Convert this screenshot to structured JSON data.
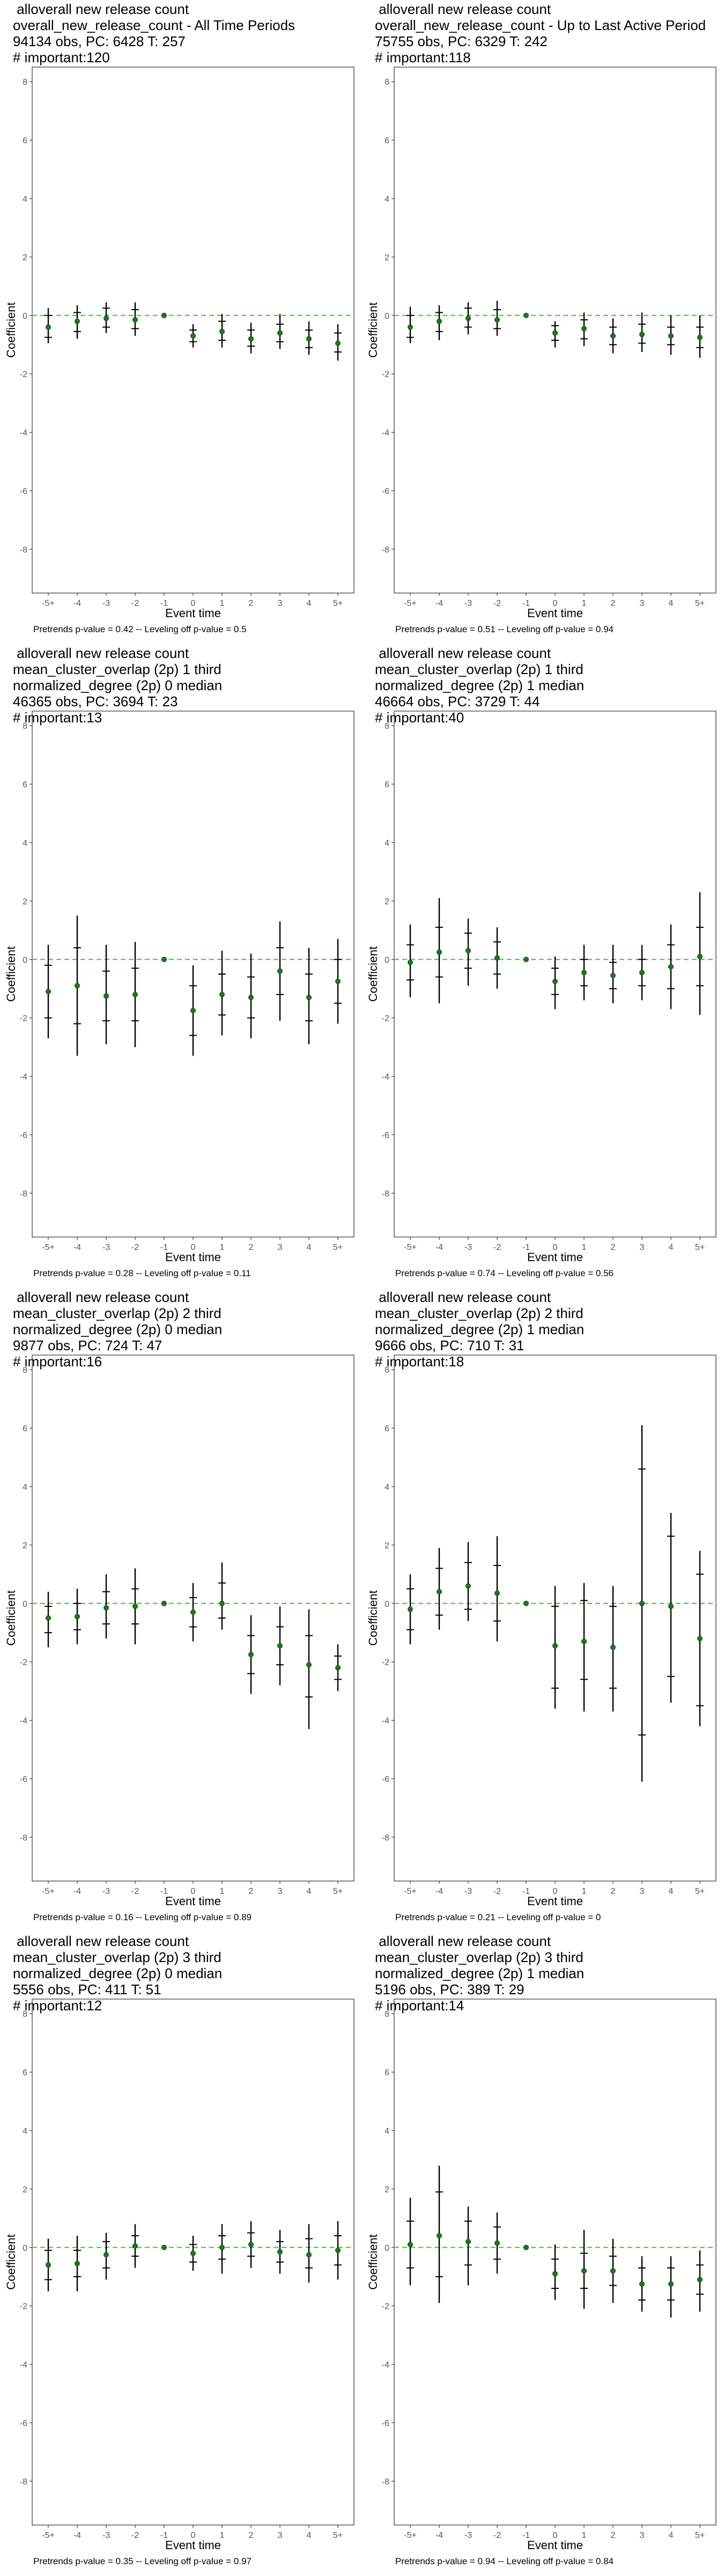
{
  "chart_data": [
    {
      "type": "scatter",
      "title_lines": [
        " alloverall new release count",
        "overall_new_release_count - All Time Periods",
        "94134 obs, PC: 6428 T: 257",
        "# important:120"
      ],
      "footer": "Pretrends p-value = 0.42 -- Leveling off p-value = 0.5",
      "xlabel": "Event time",
      "ylabel": "Coefficient",
      "categories": [
        "-5+",
        "-4",
        "-3",
        "-2",
        "-1",
        "0",
        "1",
        "2",
        "3",
        "4",
        "5+"
      ],
      "y_ticks": [
        "8",
        "6",
        "4",
        "2",
        "0",
        "-2",
        "-4",
        "-6",
        "-8"
      ],
      "ylim": [
        -9.5,
        8.5
      ],
      "values": [
        -0.4,
        -0.2,
        -0.1,
        -0.15,
        0,
        -0.7,
        -0.55,
        -0.8,
        -0.6,
        -0.8,
        -0.95
      ],
      "ci_outer": [
        [
          -0.95,
          0.25
        ],
        [
          -0.8,
          0.35
        ],
        [
          -0.6,
          0.45
        ],
        [
          -0.7,
          0.45
        ],
        [
          0,
          0
        ],
        [
          -1.1,
          -0.3
        ],
        [
          -1.1,
          0.05
        ],
        [
          -1.3,
          -0.25
        ],
        [
          -1.15,
          0.05
        ],
        [
          -1.35,
          -0.2
        ],
        [
          -1.55,
          -0.3
        ]
      ],
      "ci_inner": [
        [
          -0.75,
          0.0
        ],
        [
          -0.55,
          0.1
        ],
        [
          -0.4,
          0.25
        ],
        [
          -0.45,
          0.2
        ],
        [
          0,
          0
        ],
        [
          -0.9,
          -0.5
        ],
        [
          -0.85,
          -0.2
        ],
        [
          -1.05,
          -0.5
        ],
        [
          -0.9,
          -0.3
        ],
        [
          -1.1,
          -0.5
        ],
        [
          -1.25,
          -0.6
        ]
      ]
    },
    {
      "type": "scatter",
      "title_lines": [
        " alloverall new release count",
        "overall_new_release_count - Up to Last Active Period",
        "75755 obs, PC: 6329 T: 242",
        "# important:118"
      ],
      "footer": "Pretrends p-value = 0.51 -- Leveling off p-value = 0.94",
      "xlabel": "Event time",
      "ylabel": "Coefficient",
      "categories": [
        "-5+",
        "-4",
        "-3",
        "-2",
        "-1",
        "0",
        "1",
        "2",
        "3",
        "4",
        "5+"
      ],
      "y_ticks": [
        "8",
        "6",
        "4",
        "2",
        "0",
        "-2",
        "-4",
        "-6",
        "-8"
      ],
      "ylim": [
        -9.5,
        8.5
      ],
      "values": [
        -0.4,
        -0.2,
        -0.1,
        -0.15,
        0,
        -0.6,
        -0.45,
        -0.7,
        -0.65,
        -0.7,
        -0.75
      ],
      "ci_outer": [
        [
          -0.95,
          0.3
        ],
        [
          -0.85,
          0.35
        ],
        [
          -0.65,
          0.45
        ],
        [
          -0.7,
          0.5
        ],
        [
          0,
          0
        ],
        [
          -1.1,
          -0.2
        ],
        [
          -1.05,
          0.1
        ],
        [
          -1.3,
          -0.1
        ],
        [
          -1.25,
          0.1
        ],
        [
          -1.35,
          0.0
        ],
        [
          -1.45,
          0.0
        ]
      ],
      "ci_inner": [
        [
          -0.75,
          0.0
        ],
        [
          -0.55,
          0.1
        ],
        [
          -0.4,
          0.25
        ],
        [
          -0.45,
          0.2
        ],
        [
          0,
          0
        ],
        [
          -0.85,
          -0.35
        ],
        [
          -0.8,
          -0.15
        ],
        [
          -1.0,
          -0.4
        ],
        [
          -0.95,
          -0.3
        ],
        [
          -1.0,
          -0.4
        ],
        [
          -1.1,
          -0.4
        ]
      ]
    },
    {
      "type": "scatter",
      "title_lines": [
        " alloverall new release count",
        "mean_cluster_overlap (2p) 1 third",
        "normalized_degree (2p) 0 median",
        "46365 obs, PC: 3694 T: 23",
        "# important:13"
      ],
      "footer": "Pretrends p-value = 0.28 -- Leveling off p-value = 0.11",
      "xlabel": "Event time",
      "ylabel": "Coefficient",
      "categories": [
        "-5+",
        "-4",
        "-3",
        "-2",
        "-1",
        "0",
        "1",
        "2",
        "3",
        "4",
        "5+"
      ],
      "y_ticks": [
        "8",
        "6",
        "4",
        "2",
        "0",
        "-2",
        "-4",
        "-6",
        "-8"
      ],
      "ylim": [
        -9.5,
        8.5
      ],
      "values": [
        -1.1,
        -0.9,
        -1.25,
        -1.2,
        0,
        -1.75,
        -1.2,
        -1.3,
        -0.4,
        -1.3,
        -0.75
      ],
      "ci_outer": [
        [
          -2.7,
          0.5
        ],
        [
          -3.3,
          1.5
        ],
        [
          -2.9,
          0.5
        ],
        [
          -3.0,
          0.6
        ],
        [
          0,
          0
        ],
        [
          -3.3,
          -0.2
        ],
        [
          -2.6,
          0.3
        ],
        [
          -2.7,
          0.2
        ],
        [
          -2.1,
          1.3
        ],
        [
          -2.9,
          0.4
        ],
        [
          -2.2,
          0.7
        ]
      ],
      "ci_inner": [
        [
          -2.0,
          -0.2
        ],
        [
          -2.2,
          0.4
        ],
        [
          -2.1,
          -0.4
        ],
        [
          -2.1,
          -0.3
        ],
        [
          0,
          0
        ],
        [
          -2.6,
          -0.9
        ],
        [
          -1.9,
          -0.5
        ],
        [
          -2.0,
          -0.6
        ],
        [
          -1.2,
          0.4
        ],
        [
          -2.1,
          -0.5
        ],
        [
          -1.5,
          0.0
        ]
      ]
    },
    {
      "type": "scatter",
      "title_lines": [
        " alloverall new release count",
        "mean_cluster_overlap (2p) 1 third",
        "normalized_degree (2p) 1 median",
        "46664 obs, PC: 3729 T: 44",
        "# important:40"
      ],
      "footer": "Pretrends p-value = 0.74 -- Leveling off p-value = 0.56",
      "xlabel": "Event time",
      "ylabel": "Coefficient",
      "categories": [
        "-5+",
        "-4",
        "-3",
        "-2",
        "-1",
        "0",
        "1",
        "2",
        "3",
        "4",
        "5+"
      ],
      "y_ticks": [
        "8",
        "6",
        "4",
        "2",
        "0",
        "-2",
        "-4",
        "-6",
        "-8"
      ],
      "ylim": [
        -9.5,
        8.5
      ],
      "values": [
        -0.1,
        0.25,
        0.3,
        0.05,
        0,
        -0.75,
        -0.45,
        -0.55,
        -0.45,
        -0.25,
        0.1
      ],
      "ci_outer": [
        [
          -1.3,
          1.2
        ],
        [
          -1.5,
          2.1
        ],
        [
          -0.9,
          1.4
        ],
        [
          -1.0,
          1.1
        ],
        [
          0,
          0
        ],
        [
          -1.7,
          0.1
        ],
        [
          -1.4,
          0.5
        ],
        [
          -1.5,
          0.5
        ],
        [
          -1.4,
          0.5
        ],
        [
          -1.7,
          1.2
        ],
        [
          -1.9,
          2.3
        ]
      ],
      "ci_inner": [
        [
          -0.7,
          0.5
        ],
        [
          -0.6,
          1.1
        ],
        [
          -0.3,
          0.9
        ],
        [
          -0.5,
          0.6
        ],
        [
          0,
          0
        ],
        [
          -1.2,
          -0.3
        ],
        [
          -0.9,
          0.0
        ],
        [
          -1.0,
          -0.1
        ],
        [
          -0.9,
          0.0
        ],
        [
          -1.0,
          0.5
        ],
        [
          -0.9,
          1.1
        ]
      ]
    },
    {
      "type": "scatter",
      "title_lines": [
        " alloverall new release count",
        "mean_cluster_overlap (2p) 2 third",
        "normalized_degree (2p) 0 median",
        "9877 obs, PC: 724 T: 47",
        "# important:16"
      ],
      "footer": "Pretrends p-value = 0.16 -- Leveling off p-value = 0.89",
      "xlabel": "Event time",
      "ylabel": "Coefficient",
      "categories": [
        "-5+",
        "-4",
        "-3",
        "-2",
        "-1",
        "0",
        "1",
        "2",
        "3",
        "4",
        "5+"
      ],
      "y_ticks": [
        "8",
        "6",
        "4",
        "2",
        "0",
        "-2",
        "-4",
        "-6",
        "-8"
      ],
      "ylim": [
        -9.5,
        8.5
      ],
      "values": [
        -0.5,
        -0.45,
        -0.15,
        -0.1,
        0,
        -0.3,
        0.0,
        -1.75,
        -1.45,
        -2.1,
        -2.2
      ],
      "ci_outer": [
        [
          -1.5,
          0.4
        ],
        [
          -1.4,
          0.5
        ],
        [
          -1.2,
          1.0
        ],
        [
          -1.4,
          1.2
        ],
        [
          0,
          0
        ],
        [
          -1.3,
          0.7
        ],
        [
          -0.9,
          1.4
        ],
        [
          -3.1,
          -0.4
        ],
        [
          -2.8,
          -0.1
        ],
        [
          -4.3,
          -0.2
        ],
        [
          -3.0,
          -1.4
        ]
      ],
      "ci_inner": [
        [
          -1.0,
          -0.1
        ],
        [
          -0.9,
          0.0
        ],
        [
          -0.7,
          0.4
        ],
        [
          -0.7,
          0.5
        ],
        [
          0,
          0
        ],
        [
          -0.8,
          0.2
        ],
        [
          -0.5,
          0.7
        ],
        [
          -2.4,
          -1.1
        ],
        [
          -2.1,
          -0.8
        ],
        [
          -3.2,
          -1.1
        ],
        [
          -2.6,
          -1.8
        ]
      ]
    },
    {
      "type": "scatter",
      "title_lines": [
        " alloverall new release count",
        "mean_cluster_overlap (2p) 2 third",
        "normalized_degree (2p) 1 median",
        "9666 obs, PC: 710 T: 31",
        "# important:18"
      ],
      "footer": "Pretrends p-value = 0.21 -- Leveling off p-value = 0",
      "xlabel": "Event time",
      "ylabel": "Coefficient",
      "categories": [
        "-5+",
        "-4",
        "-3",
        "-2",
        "-1",
        "0",
        "1",
        "2",
        "3",
        "4",
        "5+"
      ],
      "y_ticks": [
        "8",
        "6",
        "4",
        "2",
        "0",
        "-2",
        "-4",
        "-6",
        "-8"
      ],
      "ylim": [
        -9.5,
        8.5
      ],
      "values": [
        -0.2,
        0.4,
        0.6,
        0.35,
        0,
        -1.45,
        -1.3,
        -1.5,
        0.0,
        -0.1,
        -1.2
      ],
      "ci_outer": [
        [
          -1.4,
          1.0
        ],
        [
          -0.9,
          1.9
        ],
        [
          -0.6,
          2.1
        ],
        [
          -1.3,
          2.3
        ],
        [
          0,
          0
        ],
        [
          -3.6,
          0.6
        ],
        [
          -3.7,
          0.7
        ],
        [
          -3.7,
          0.6
        ],
        [
          -6.1,
          6.1
        ],
        [
          -3.4,
          3.1
        ],
        [
          -4.2,
          1.8
        ]
      ],
      "ci_inner": [
        [
          -0.9,
          0.5
        ],
        [
          -0.4,
          1.2
        ],
        [
          -0.2,
          1.4
        ],
        [
          -0.6,
          1.3
        ],
        [
          0,
          0
        ],
        [
          -2.9,
          -0.1
        ],
        [
          -2.6,
          0.1
        ],
        [
          -2.9,
          -0.1
        ],
        [
          -4.5,
          4.6
        ],
        [
          -2.5,
          2.3
        ],
        [
          -3.5,
          1.0
        ]
      ]
    },
    {
      "type": "scatter",
      "title_lines": [
        " alloverall new release count",
        "mean_cluster_overlap (2p) 3 third",
        "normalized_degree (2p) 0 median",
        "5556 obs, PC: 411 T: 51",
        "# important:12"
      ],
      "footer": "Pretrends p-value = 0.35 -- Leveling off p-value = 0.97",
      "xlabel": "Event time",
      "ylabel": "Coefficient",
      "categories": [
        "-5+",
        "-4",
        "-3",
        "-2",
        "-1",
        "0",
        "1",
        "2",
        "3",
        "4",
        "5+"
      ],
      "y_ticks": [
        "8",
        "6",
        "4",
        "2",
        "0",
        "-2",
        "-4",
        "-6",
        "-8"
      ],
      "ylim": [
        -9.5,
        8.5
      ],
      "values": [
        -0.6,
        -0.55,
        -0.25,
        0.05,
        0,
        -0.2,
        0.0,
        0.1,
        -0.15,
        -0.25,
        -0.1
      ],
      "ci_outer": [
        [
          -1.5,
          0.3
        ],
        [
          -1.5,
          0.4
        ],
        [
          -1.1,
          0.5
        ],
        [
          -0.7,
          0.8
        ],
        [
          0,
          0
        ],
        [
          -0.8,
          0.4
        ],
        [
          -0.9,
          0.8
        ],
        [
          -0.7,
          0.9
        ],
        [
          -0.9,
          0.6
        ],
        [
          -1.2,
          0.8
        ],
        [
          -1.1,
          0.9
        ]
      ],
      "ci_inner": [
        [
          -1.1,
          -0.1
        ],
        [
          -1.0,
          -0.1
        ],
        [
          -0.7,
          0.2
        ],
        [
          -0.3,
          0.4
        ],
        [
          0,
          0
        ],
        [
          -0.5,
          0.1
        ],
        [
          -0.4,
          0.4
        ],
        [
          -0.3,
          0.5
        ],
        [
          -0.5,
          0.2
        ],
        [
          -0.7,
          0.3
        ],
        [
          -0.6,
          0.4
        ]
      ]
    },
    {
      "type": "scatter",
      "title_lines": [
        " alloverall new release count",
        "mean_cluster_overlap (2p) 3 third",
        "normalized_degree (2p) 1 median",
        "5196 obs, PC: 389 T: 29",
        "# important:14"
      ],
      "footer": "Pretrends p-value = 0.94 -- Leveling off p-value = 0.84",
      "xlabel": "Event time",
      "ylabel": "Coefficient",
      "categories": [
        "-5+",
        "-4",
        "-3",
        "-2",
        "-1",
        "0",
        "1",
        "2",
        "3",
        "4",
        "5+"
      ],
      "y_ticks": [
        "8",
        "6",
        "4",
        "2",
        "0",
        "-2",
        "-4",
        "-6",
        "-8"
      ],
      "ylim": [
        -9.5,
        8.5
      ],
      "values": [
        0.1,
        0.4,
        0.2,
        0.15,
        0,
        -0.9,
        -0.8,
        -0.8,
        -1.25,
        -1.25,
        -1.1
      ],
      "ci_outer": [
        [
          -1.3,
          1.7
        ],
        [
          -1.9,
          2.8
        ],
        [
          -1.3,
          1.4
        ],
        [
          -0.9,
          1.2
        ],
        [
          0,
          0
        ],
        [
          -1.8,
          0.1
        ],
        [
          -2.1,
          0.6
        ],
        [
          -1.9,
          0.3
        ],
        [
          -2.2,
          -0.3
        ],
        [
          -2.4,
          -0.3
        ],
        [
          -2.2,
          -0.1
        ]
      ],
      "ci_inner": [
        [
          -0.7,
          0.9
        ],
        [
          -1.0,
          1.9
        ],
        [
          -0.6,
          0.9
        ],
        [
          -0.4,
          0.7
        ],
        [
          0,
          0
        ],
        [
          -1.4,
          -0.4
        ],
        [
          -1.4,
          -0.2
        ],
        [
          -1.3,
          -0.3
        ],
        [
          -1.8,
          -0.7
        ],
        [
          -1.8,
          -0.7
        ],
        [
          -1.6,
          -0.6
        ]
      ]
    }
  ]
}
